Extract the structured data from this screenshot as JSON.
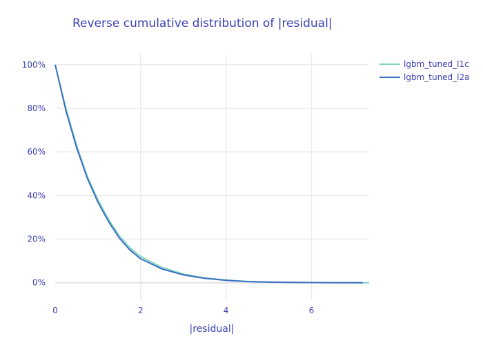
{
  "chart_data": {
    "type": "line",
    "title": "Reverse cumulative distribution of |residual|",
    "xlabel": "|residual|",
    "ylabel": "",
    "xlim": [
      0,
      7.35
    ],
    "ylim": [
      -0.08,
      1.05
    ],
    "xticks": [
      0,
      2,
      4,
      6
    ],
    "yticks": [
      0,
      0.2,
      0.4,
      0.6,
      0.8,
      1.0
    ],
    "ytick_labels": [
      "0%",
      "20%",
      "40%",
      "60%",
      "80%",
      "100%"
    ],
    "grid": true,
    "legend": "top-right",
    "series": [
      {
        "name": "lgbm_tuned_l1c",
        "color": "#7fd4c1",
        "x": [
          0,
          0.25,
          0.5,
          0.75,
          1.0,
          1.25,
          1.5,
          1.75,
          2.0,
          2.5,
          3.0,
          3.5,
          4.0,
          4.5,
          5.0,
          5.5,
          6.0,
          6.5,
          7.0,
          7.35
        ],
        "y": [
          1.0,
          0.8,
          0.63,
          0.49,
          0.38,
          0.29,
          0.215,
          0.16,
          0.12,
          0.07,
          0.04,
          0.022,
          0.012,
          0.006,
          0.003,
          0.0015,
          0.0007,
          0.0003,
          0.0001,
          0.0
        ]
      },
      {
        "name": "lgbm_tuned_l2a",
        "color": "#3c6fc0",
        "x": [
          0,
          0.25,
          0.5,
          0.75,
          1.0,
          1.25,
          1.5,
          1.75,
          2.0,
          2.5,
          3.0,
          3.5,
          4.0,
          4.5,
          5.0,
          5.5,
          6.0,
          6.5,
          7.0,
          7.2
        ],
        "y": [
          1.0,
          0.79,
          0.62,
          0.48,
          0.37,
          0.28,
          0.205,
          0.15,
          0.11,
          0.063,
          0.036,
          0.02,
          0.011,
          0.005,
          0.0025,
          0.0012,
          0.0006,
          0.0002,
          0.0001,
          0.0
        ]
      }
    ]
  }
}
